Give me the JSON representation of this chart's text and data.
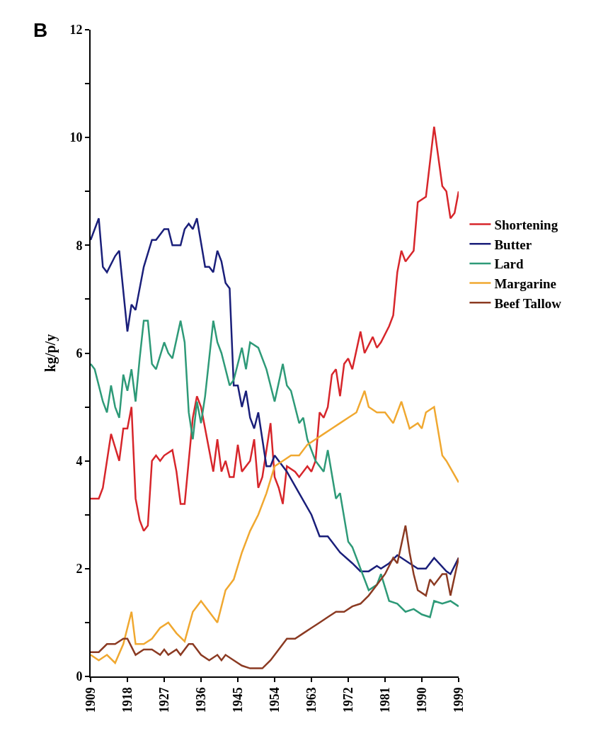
{
  "chart_data": {
    "type": "line",
    "ylabel": "kg/p/y",
    "annotations": [
      "B"
    ],
    "xlim": [
      1909,
      1999
    ],
    "xticks": [
      1909,
      1918,
      1927,
      1936,
      1945,
      1954,
      1963,
      1972,
      1981,
      1990,
      1999
    ],
    "ylim": [
      0,
      12
    ],
    "yticks": [
      0,
      {
        "value": 1,
        "label": null
      },
      2,
      {
        "value": 3,
        "label": null
      },
      4,
      {
        "value": 5,
        "label": null
      },
      6,
      {
        "value": 7,
        "label": null
      },
      8,
      {
        "value": 9,
        "label": null
      },
      10,
      {
        "value": 11,
        "label": null
      },
      12
    ],
    "legend": "right",
    "marker": "none",
    "line_style": "solid",
    "series": [
      {
        "name": "Shortening",
        "color": "#d7262b",
        "x": [
          1909,
          1911,
          1912,
          1914,
          1916,
          1917,
          1918,
          1919,
          1920,
          1921,
          1922,
          1923,
          1924,
          1925,
          1926,
          1927,
          1929,
          1930,
          1931,
          1932,
          1934,
          1935,
          1936,
          1938,
          1939,
          1940,
          1941,
          1942,
          1943,
          1944,
          1945,
          1946,
          1948,
          1949,
          1950,
          1951,
          1952,
          1953,
          1954,
          1955,
          1956,
          1957,
          1959,
          1960,
          1962,
          1963,
          1964,
          1965,
          1966,
          1967,
          1968,
          1969,
          1970,
          1971,
          1972,
          1973,
          1975,
          1976,
          1978,
          1979,
          1980,
          1982,
          1983,
          1984,
          1985,
          1986,
          1988,
          1989,
          1991,
          1993,
          1995,
          1996,
          1997,
          1998,
          1999
        ],
        "values": [
          3.3,
          3.3,
          3.5,
          4.5,
          4.0,
          4.6,
          4.6,
          5.0,
          3.3,
          2.9,
          2.7,
          2.8,
          4.0,
          4.1,
          4.0,
          4.1,
          4.2,
          3.8,
          3.2,
          3.2,
          4.8,
          5.2,
          5.0,
          4.2,
          3.8,
          4.4,
          3.8,
          4.0,
          3.7,
          3.7,
          4.3,
          3.8,
          4.0,
          4.4,
          3.5,
          3.7,
          4.2,
          4.7,
          3.7,
          3.5,
          3.2,
          3.9,
          3.8,
          3.7,
          3.9,
          3.8,
          4.0,
          4.9,
          4.8,
          5.0,
          5.6,
          5.7,
          5.2,
          5.8,
          5.9,
          5.7,
          6.4,
          6.0,
          6.3,
          6.1,
          6.2,
          6.5,
          6.7,
          7.5,
          7.9,
          7.7,
          7.9,
          8.8,
          8.9,
          10.2,
          9.1,
          9.0,
          8.5,
          8.6,
          9.0
        ]
      },
      {
        "name": "Butter",
        "color": "#1a1f7a",
        "x": [
          1909,
          1911,
          1912,
          1913,
          1915,
          1916,
          1918,
          1919,
          1920,
          1922,
          1924,
          1925,
          1927,
          1928,
          1929,
          1931,
          1932,
          1933,
          1934,
          1935,
          1937,
          1938,
          1939,
          1940,
          1941,
          1942,
          1943,
          1944,
          1945,
          1946,
          1947,
          1948,
          1949,
          1950,
          1951,
          1952,
          1953,
          1954,
          1957,
          1960,
          1963,
          1965,
          1967,
          1970,
          1973,
          1975,
          1977,
          1979,
          1980,
          1982,
          1984,
          1987,
          1989,
          1991,
          1993,
          1996,
          1997,
          1999
        ],
        "values": [
          8.1,
          8.5,
          7.6,
          7.5,
          7.8,
          7.9,
          6.4,
          6.9,
          6.8,
          7.6,
          8.1,
          8.1,
          8.3,
          8.3,
          8.0,
          8.0,
          8.3,
          8.4,
          8.3,
          8.5,
          7.6,
          7.6,
          7.5,
          7.9,
          7.7,
          7.3,
          7.2,
          5.4,
          5.4,
          5.0,
          5.3,
          4.8,
          4.6,
          4.9,
          4.4,
          3.9,
          3.9,
          4.1,
          3.8,
          3.4,
          3.0,
          2.6,
          2.6,
          2.3,
          2.1,
          1.95,
          1.95,
          2.05,
          2.0,
          2.1,
          2.25,
          2.1,
          2.0,
          2.0,
          2.2,
          1.95,
          1.9,
          2.2
        ]
      },
      {
        "name": "Lard",
        "color": "#2e9a78",
        "x": [
          1909,
          1910,
          1912,
          1913,
          1914,
          1915,
          1916,
          1917,
          1918,
          1919,
          1920,
          1921,
          1922,
          1923,
          1924,
          1925,
          1927,
          1928,
          1929,
          1931,
          1932,
          1933,
          1934,
          1935,
          1936,
          1937,
          1939,
          1940,
          1941,
          1943,
          1944,
          1946,
          1947,
          1948,
          1950,
          1952,
          1954,
          1956,
          1957,
          1958,
          1960,
          1961,
          1962,
          1964,
          1966,
          1967,
          1969,
          1970,
          1972,
          1973,
          1975,
          1977,
          1979,
          1980,
          1982,
          1984,
          1986,
          1988,
          1990,
          1992,
          1993,
          1995,
          1997,
          1999
        ],
        "values": [
          5.8,
          5.7,
          5.1,
          4.9,
          5.4,
          5.0,
          4.8,
          5.6,
          5.3,
          5.7,
          5.1,
          5.9,
          6.6,
          6.6,
          5.8,
          5.7,
          6.2,
          6.0,
          5.9,
          6.6,
          6.2,
          4.9,
          4.4,
          5.1,
          4.7,
          5.2,
          6.6,
          6.2,
          6.0,
          5.4,
          5.5,
          6.1,
          5.7,
          6.2,
          6.1,
          5.7,
          5.1,
          5.8,
          5.4,
          5.3,
          4.7,
          4.8,
          4.4,
          4.0,
          3.8,
          4.2,
          3.3,
          3.4,
          2.5,
          2.4,
          2.0,
          1.6,
          1.7,
          1.9,
          1.4,
          1.35,
          1.2,
          1.25,
          1.15,
          1.1,
          1.4,
          1.35,
          1.4,
          1.3
        ]
      },
      {
        "name": "Margarine",
        "color": "#f0a830",
        "x": [
          1909,
          1911,
          1913,
          1915,
          1917,
          1919,
          1920,
          1922,
          1924,
          1926,
          1928,
          1930,
          1932,
          1934,
          1936,
          1938,
          1940,
          1942,
          1944,
          1946,
          1948,
          1950,
          1952,
          1954,
          1956,
          1958,
          1960,
          1962,
          1964,
          1966,
          1968,
          1970,
          1972,
          1974,
          1976,
          1977,
          1979,
          1981,
          1983,
          1985,
          1987,
          1989,
          1990,
          1991,
          1993,
          1995,
          1996,
          1999
        ],
        "values": [
          0.4,
          0.3,
          0.4,
          0.25,
          0.6,
          1.2,
          0.6,
          0.6,
          0.7,
          0.9,
          1.0,
          0.8,
          0.65,
          1.2,
          1.4,
          1.2,
          1.0,
          1.6,
          1.8,
          2.3,
          2.7,
          3.0,
          3.4,
          3.9,
          4.0,
          4.1,
          4.1,
          4.3,
          4.4,
          4.5,
          4.6,
          4.7,
          4.8,
          4.9,
          5.3,
          5.0,
          4.9,
          4.9,
          4.7,
          5.1,
          4.6,
          4.7,
          4.6,
          4.9,
          5.0,
          4.1,
          4.0,
          3.6
        ]
      },
      {
        "name": "Beef Tallow",
        "color": "#8b3a22",
        "x": [
          1909,
          1911,
          1913,
          1915,
          1917,
          1918,
          1920,
          1922,
          1924,
          1926,
          1927,
          1928,
          1930,
          1931,
          1933,
          1934,
          1936,
          1938,
          1940,
          1941,
          1942,
          1944,
          1946,
          1948,
          1951,
          1953,
          1955,
          1957,
          1959,
          1961,
          1963,
          1965,
          1967,
          1969,
          1971,
          1973,
          1975,
          1977,
          1979,
          1981,
          1983,
          1984,
          1986,
          1987,
          1988,
          1989,
          1991,
          1992,
          1993,
          1995,
          1996,
          1997,
          1999
        ],
        "values": [
          0.45,
          0.45,
          0.6,
          0.6,
          0.7,
          0.7,
          0.4,
          0.5,
          0.5,
          0.4,
          0.5,
          0.4,
          0.5,
          0.4,
          0.6,
          0.6,
          0.4,
          0.3,
          0.4,
          0.3,
          0.4,
          0.3,
          0.2,
          0.15,
          0.15,
          0.3,
          0.5,
          0.7,
          0.7,
          0.8,
          0.9,
          1.0,
          1.1,
          1.2,
          1.2,
          1.3,
          1.35,
          1.5,
          1.7,
          1.9,
          2.2,
          2.1,
          2.8,
          2.3,
          1.9,
          1.6,
          1.5,
          1.8,
          1.7,
          1.9,
          1.9,
          1.5,
          2.2
        ]
      }
    ]
  }
}
